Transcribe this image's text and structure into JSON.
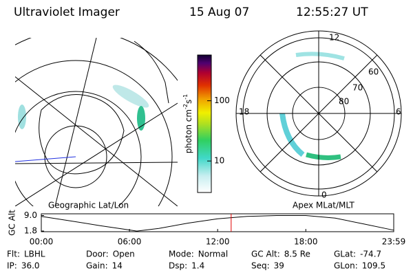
{
  "header": {
    "instrument": "Ultraviolet Imager",
    "date": "15 Aug 07",
    "time": "12:55:27 UT"
  },
  "left_map": {
    "label": "Geographic Lat/Lon"
  },
  "right_map": {
    "label": "Apex MLat/MLT",
    "mlt_labels": {
      "top": "12",
      "left": "18",
      "right": "6",
      "bottom": "0"
    },
    "lat_labels": [
      "60",
      "70",
      "80"
    ]
  },
  "colorbar": {
    "label": [
      "photon cm",
      "-2",
      "s",
      "-1"
    ],
    "clim": [
      3,
      575
    ],
    "log": true,
    "ticks": [
      10,
      100
    ]
  },
  "altitude_plot": {
    "ylabel": "GC Alt",
    "x": [
      0,
      2,
      4,
      6,
      6.5,
      8,
      10,
      12,
      14,
      16,
      18,
      20,
      22,
      23.98
    ],
    "values": [
      8.6,
      6.5,
      4.3,
      2.3,
      1.8,
      3.0,
      5.5,
      7.5,
      8.6,
      9.0,
      9.0,
      7.8,
      5.0,
      2.2
    ],
    "color": "#000000",
    "current_time": 12.92,
    "current_color": "#e00000",
    "xlim": [
      0,
      23.983
    ],
    "ylim": [
      1.5,
      9.8
    ],
    "xticks": [
      {
        "value": 0,
        "label": "00:00"
      },
      {
        "value": 6,
        "label": "06:00"
      },
      {
        "value": 12,
        "label": "12:00"
      },
      {
        "value": 18,
        "label": "18:00"
      },
      {
        "value": 23.983,
        "label": "23:59"
      }
    ],
    "yticks": [
      {
        "value": 9.0,
        "label": "9.0"
      },
      {
        "value": 1.8,
        "label": "1.8"
      }
    ]
  },
  "status": [
    [
      {
        "label": "Flt:",
        "value": "LBHL"
      },
      {
        "label": "Door:",
        "value": "Open"
      },
      {
        "label": "Mode:",
        "value": "Normal"
      },
      {
        "label": "GC Alt:",
        "value": "8.5 Re"
      },
      {
        "label": "GLat:",
        "value": "-74.7"
      }
    ],
    [
      {
        "label": "IP:",
        "value": "36.0"
      },
      {
        "label": "Gain:",
        "value": "14"
      },
      {
        "label": "Dsp:",
        "value": "1.4"
      },
      {
        "label": "Seq:",
        "value": "39"
      },
      {
        "label": "GLon:",
        "value": "109.5"
      }
    ]
  ]
}
